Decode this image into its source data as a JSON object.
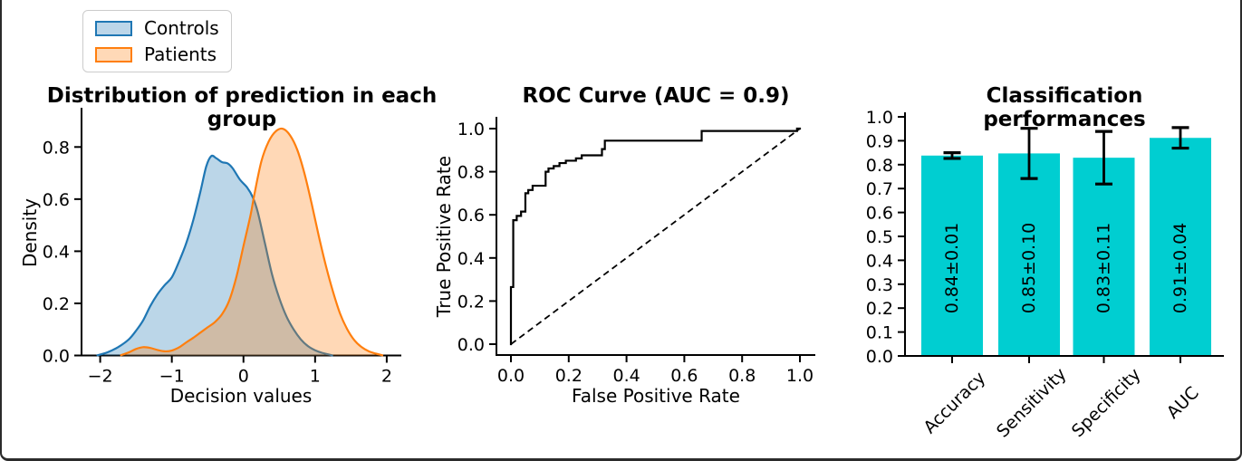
{
  "figure": {
    "background": "#ffffff",
    "border_color": "#2b2b2b"
  },
  "legend": {
    "items": [
      {
        "label": "Controls",
        "color": "#1f77b4",
        "fill": "#bcd6e9"
      },
      {
        "label": "Patients",
        "color": "#ff7f0e",
        "fill": "#ffd9b7"
      }
    ]
  },
  "chart_data": [
    {
      "type": "area",
      "title": "Distribution of prediction in each group",
      "xlabel": "Decision values",
      "ylabel": "Density",
      "xlim": [
        -2.26,
        2.19
      ],
      "ylim": [
        0,
        0.947
      ],
      "grid": false,
      "xticks": {
        "values": [
          -2,
          -1,
          0,
          1,
          2
        ],
        "labels": [
          "−2",
          "−1",
          "0",
          "1",
          "2"
        ]
      },
      "yticks": {
        "values": [
          0,
          0.2,
          0.4,
          0.6,
          0.8
        ],
        "labels": [
          "0.0",
          "0.2",
          "0.4",
          "0.6",
          "0.8"
        ]
      },
      "series": [
        {
          "name": "Controls",
          "color": "#1f77b4",
          "points": [
            [
              -2.05,
              0
            ],
            [
              -1.9,
              0.012
            ],
            [
              -1.75,
              0.032
            ],
            [
              -1.6,
              0.062
            ],
            [
              -1.5,
              0.095
            ],
            [
              -1.4,
              0.135
            ],
            [
              -1.3,
              0.19
            ],
            [
              -1.2,
              0.235
            ],
            [
              -1.1,
              0.27
            ],
            [
              -1.0,
              0.3
            ],
            [
              -0.9,
              0.36
            ],
            [
              -0.8,
              0.43
            ],
            [
              -0.7,
              0.52
            ],
            [
              -0.6,
              0.63
            ],
            [
              -0.52,
              0.725
            ],
            [
              -0.45,
              0.765
            ],
            [
              -0.38,
              0.757
            ],
            [
              -0.3,
              0.742
            ],
            [
              -0.22,
              0.737
            ],
            [
              -0.15,
              0.718
            ],
            [
              -0.05,
              0.675
            ],
            [
              0.05,
              0.645
            ],
            [
              0.13,
              0.607
            ],
            [
              0.2,
              0.55
            ],
            [
              0.3,
              0.43
            ],
            [
              0.4,
              0.31
            ],
            [
              0.5,
              0.22
            ],
            [
              0.6,
              0.15
            ],
            [
              0.7,
              0.1
            ],
            [
              0.8,
              0.062
            ],
            [
              0.9,
              0.036
            ],
            [
              1.0,
              0.02
            ],
            [
              1.1,
              0.01
            ],
            [
              1.25,
              0
            ]
          ]
        },
        {
          "name": "Patients",
          "color": "#ff7f0e",
          "points": [
            [
              -1.72,
              0
            ],
            [
              -1.6,
              0.012
            ],
            [
              -1.5,
              0.025
            ],
            [
              -1.4,
              0.032
            ],
            [
              -1.3,
              0.029
            ],
            [
              -1.2,
              0.021
            ],
            [
              -1.1,
              0.016
            ],
            [
              -1.0,
              0.019
            ],
            [
              -0.9,
              0.031
            ],
            [
              -0.8,
              0.05
            ],
            [
              -0.7,
              0.068
            ],
            [
              -0.6,
              0.088
            ],
            [
              -0.5,
              0.108
            ],
            [
              -0.4,
              0.128
            ],
            [
              -0.3,
              0.158
            ],
            [
              -0.2,
              0.21
            ],
            [
              -0.1,
              0.3
            ],
            [
              0.0,
              0.42
            ],
            [
              0.1,
              0.54
            ],
            [
              0.15,
              0.615
            ],
            [
              0.25,
              0.745
            ],
            [
              0.35,
              0.82
            ],
            [
              0.45,
              0.86
            ],
            [
              0.55,
              0.87
            ],
            [
              0.65,
              0.845
            ],
            [
              0.75,
              0.79
            ],
            [
              0.85,
              0.7
            ],
            [
              0.95,
              0.585
            ],
            [
              1.05,
              0.46
            ],
            [
              1.15,
              0.345
            ],
            [
              1.25,
              0.245
            ],
            [
              1.35,
              0.16
            ],
            [
              1.45,
              0.1
            ],
            [
              1.55,
              0.058
            ],
            [
              1.65,
              0.032
            ],
            [
              1.75,
              0.016
            ],
            [
              1.85,
              0.007
            ],
            [
              1.95,
              0
            ]
          ]
        }
      ]
    },
    {
      "type": "line",
      "title": "ROC Curve (AUC = 0.9)",
      "xlabel": "False Positive Rate",
      "ylabel": "True Positive Rate",
      "auc": 0.9,
      "xlim": [
        -0.05,
        1.05
      ],
      "ylim": [
        -0.05,
        1.05
      ],
      "grid": false,
      "diagonal": "dashed",
      "line_color": "#000000",
      "xticks": {
        "values": [
          0,
          0.2,
          0.4,
          0.6,
          0.8,
          1.0
        ],
        "labels": [
          "0.0",
          "0.2",
          "0.4",
          "0.6",
          "0.8",
          "1.0"
        ]
      },
      "yticks": {
        "values": [
          0,
          0.2,
          0.4,
          0.6,
          0.8,
          1.0
        ],
        "labels": [
          "0.0",
          "0.2",
          "0.4",
          "0.6",
          "0.8",
          "1.0"
        ]
      },
      "points": [
        [
          0,
          0
        ],
        [
          0,
          0.265
        ],
        [
          0.008,
          0.265
        ],
        [
          0.008,
          0.575
        ],
        [
          0.02,
          0.575
        ],
        [
          0.02,
          0.595
        ],
        [
          0.035,
          0.595
        ],
        [
          0.035,
          0.615
        ],
        [
          0.05,
          0.615
        ],
        [
          0.05,
          0.7
        ],
        [
          0.06,
          0.7
        ],
        [
          0.06,
          0.715
        ],
        [
          0.075,
          0.715
        ],
        [
          0.075,
          0.735
        ],
        [
          0.12,
          0.735
        ],
        [
          0.12,
          0.8
        ],
        [
          0.13,
          0.8
        ],
        [
          0.13,
          0.815
        ],
        [
          0.148,
          0.815
        ],
        [
          0.148,
          0.826
        ],
        [
          0.168,
          0.826
        ],
        [
          0.168,
          0.84
        ],
        [
          0.19,
          0.84
        ],
        [
          0.19,
          0.851
        ],
        [
          0.225,
          0.851
        ],
        [
          0.225,
          0.862
        ],
        [
          0.245,
          0.862
        ],
        [
          0.245,
          0.876
        ],
        [
          0.315,
          0.876
        ],
        [
          0.315,
          0.905
        ],
        [
          0.325,
          0.905
        ],
        [
          0.325,
          0.944
        ],
        [
          0.66,
          0.944
        ],
        [
          0.66,
          0.989
        ],
        [
          0.99,
          0.989
        ],
        [
          0.99,
          1.0
        ],
        [
          1.0,
          1.0
        ]
      ]
    },
    {
      "type": "bar",
      "title": "Classification performances",
      "xlabel": "",
      "ylabel": "",
      "categories": [
        "Accuracy",
        "Sensitivity",
        "Specificity",
        "AUC"
      ],
      "values": [
        0.838,
        0.847,
        0.829,
        0.912
      ],
      "errors": [
        0.012,
        0.105,
        0.11,
        0.043
      ],
      "bar_labels": [
        "0.84±0.01",
        "0.85±0.10",
        "0.83±0.11",
        "0.91±0.04"
      ],
      "bar_color": "#00CED1",
      "error_color": "#000000",
      "ylim": [
        0,
        1.0
      ],
      "grid": false,
      "yticks": {
        "values": [
          0,
          0.1,
          0.2,
          0.3,
          0.4,
          0.5,
          0.6,
          0.7,
          0.8,
          0.9,
          1.0
        ],
        "labels": [
          "0.0",
          "0.1",
          "0.2",
          "0.3",
          "0.4",
          "0.5",
          "0.6",
          "0.7",
          "0.8",
          "0.9",
          "1.0"
        ]
      }
    }
  ]
}
